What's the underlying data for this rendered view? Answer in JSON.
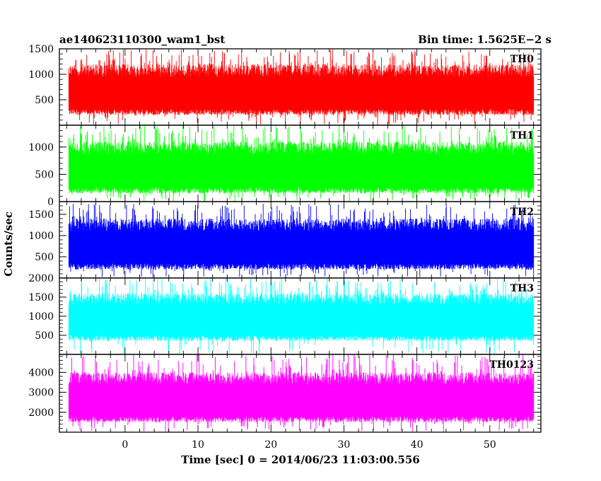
{
  "header": {
    "title": "ae140623110300_wam1_bst",
    "bin_time": "Bin time: 1.5625E−2 s"
  },
  "axis": {
    "xlabel": "Time [sec] 0 = 2014/06/23 11:03:00.556",
    "ylabel": "Counts/sec"
  },
  "chart_data": {
    "type": "line",
    "title": "ae140623110300_wam1_bst",
    "xlabel": "Time [sec] 0 = 2014/06/23 11:03:00.556",
    "ylabel": "Counts/sec",
    "xlim": [
      -9,
      57
    ],
    "x_ticks": [
      0,
      10,
      20,
      30,
      40,
      50
    ],
    "x_range_data": [
      -7.7,
      56.0
    ],
    "bin_time_s": 0.015625,
    "panels": [
      {
        "name": "TH0",
        "color": "#ff0000",
        "ylim": [
          0,
          1500
        ],
        "y_ticks": [
          500,
          1000,
          1500
        ],
        "y_tick_labels": [
          "500",
          "1000",
          "1500"
        ],
        "typical_min": 200,
        "typical_max": 1200,
        "peak_max": 1500
      },
      {
        "name": "TH1",
        "color": "#00ff00",
        "ylim": [
          0,
          1400
        ],
        "y_ticks": [
          0,
          500,
          1000
        ],
        "y_tick_labels": [
          "0",
          "500",
          "1000"
        ],
        "typical_min": 150,
        "typical_max": 1100,
        "peak_max": 1400
      },
      {
        "name": "TH2",
        "color": "#0000ff",
        "ylim": [
          0,
          1800
        ],
        "y_ticks": [
          500,
          1000,
          1500
        ],
        "y_tick_labels": [
          "500",
          "1000",
          "1500"
        ],
        "typical_min": 200,
        "typical_max": 1400,
        "peak_max": 1750
      },
      {
        "name": "TH3",
        "color": "#00ffff",
        "ylim": [
          0,
          2000
        ],
        "y_ticks": [
          500,
          1000,
          1500,
          2000
        ],
        "y_tick_labels": [
          "500",
          "1000",
          "1500",
          "2000"
        ],
        "typical_min": 350,
        "typical_max": 1600,
        "peak_max": 2000
      },
      {
        "name": "TH0123",
        "color": "#ff00ff",
        "ylim": [
          1000,
          4900
        ],
        "y_ticks": [
          2000,
          3000,
          4000
        ],
        "y_tick_labels": [
          "2000",
          "3000",
          "4000"
        ],
        "typical_min": 1500,
        "typical_max": 4000,
        "peak_max": 4900
      }
    ],
    "grid": false,
    "legend": "none"
  }
}
